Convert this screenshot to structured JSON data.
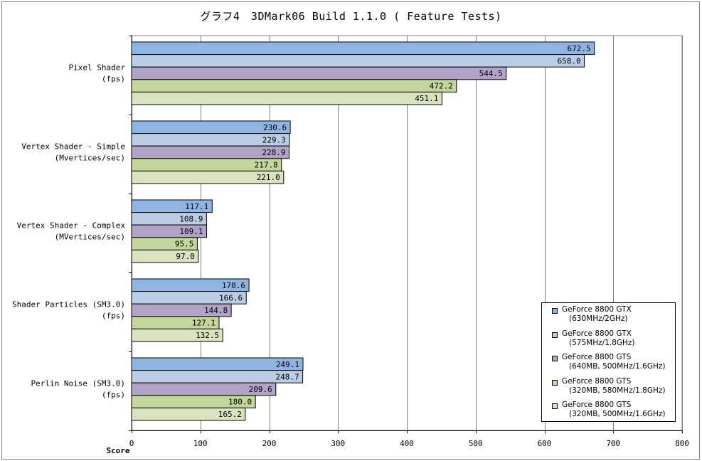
{
  "title": "グラフ4　3DMark06 Build 1.1.0 ( Feature Tests)",
  "chart_data": {
    "type": "bar",
    "orientation": "horizontal",
    "title": "グラフ4　3DMark06 Build 1.1.0 ( Feature Tests)",
    "xlabel": "Score",
    "xlim": [
      0,
      800
    ],
    "xticks": [
      0,
      100,
      200,
      300,
      400,
      500,
      600,
      700,
      800
    ],
    "grid": true,
    "legend_position": "bottom-right",
    "categories": [
      [
        "Pixel Shader",
        "(fps)"
      ],
      [
        "Vertex Shader - Simple",
        "(Mvertices/sec)"
      ],
      [
        "Vertex Shader - Complex",
        "(MVertices/sec)"
      ],
      [
        "Shader Particles (SM3.0)",
        "(fps)"
      ],
      [
        "Perlin Noise (SM3.0)",
        "(fps)"
      ]
    ],
    "series": [
      {
        "name": "GeForce 8800 GTX",
        "detail": "(630MHz/2GHz)",
        "color": "#8eb4e3",
        "values": [
          672.5,
          230.6,
          117.1,
          170.6,
          249.1
        ],
        "labels": [
          "672.5",
          "230.6",
          "117.1",
          "170.6",
          "249.1"
        ]
      },
      {
        "name": "GeForce 8800 GTX",
        "detail": "(575MHz/1.8GHz)",
        "color": "#b9cde5",
        "values": [
          658.0,
          229.3,
          108.9,
          166.6,
          248.7
        ],
        "labels": [
          "658.0",
          "229.3",
          "108.9",
          "166.6",
          "248.7"
        ]
      },
      {
        "name": "GeForce 8800 GTS",
        "detail": "(640MB, 500MHz/1.6GHz)",
        "color": "#b3a2c7",
        "values": [
          544.5,
          228.9,
          109.1,
          144.8,
          209.6
        ],
        "labels": [
          "544.5",
          "228.9",
          "109.1",
          "144.8",
          "209.6"
        ]
      },
      {
        "name": "GeForce 8800 GTS",
        "detail": "(320MB, 580MHz/1.8GHz)",
        "color": "#c3d69b",
        "values": [
          472.2,
          217.8,
          95.5,
          127.1,
          180.0
        ],
        "labels": [
          "472.2",
          "217.8",
          "95.5",
          "127.1",
          "180.0"
        ]
      },
      {
        "name": "GeForce 8800 GTS",
        "detail": "(320MB, 500MHz/1.6GHz)",
        "color": "#d7e4bd",
        "values": [
          451.1,
          221.0,
          97.0,
          132.5,
          165.2
        ],
        "labels": [
          "451.1",
          "221.0",
          "97.0",
          "132.5",
          "165.2"
        ]
      }
    ]
  }
}
